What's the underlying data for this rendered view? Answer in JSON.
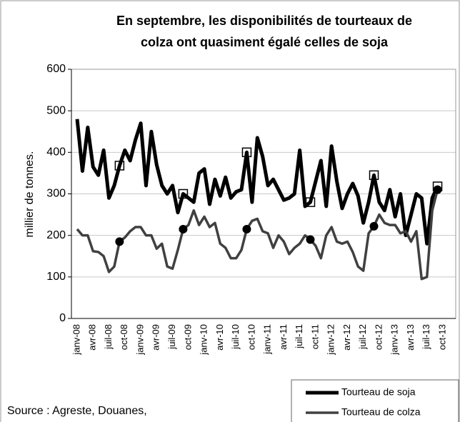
{
  "chart_data": {
    "type": "line",
    "title": "En septembre, les disponibilités de tourteaux de",
    "title_line2": "colza ont quasiment égalé celles de soja",
    "y_label": "millier de tonnes.",
    "source": "Source : Agreste, Douanes,",
    "categories": [
      "janv-08",
      null,
      null,
      "avr-08",
      null,
      null,
      "juil-08",
      null,
      null,
      "oct-08",
      null,
      null,
      "janv-09",
      null,
      null,
      "avr-09",
      null,
      null,
      "juil-09",
      null,
      null,
      "oct-09",
      null,
      null,
      "janv-10",
      null,
      null,
      "avr-10",
      null,
      null,
      "juil-10",
      null,
      null,
      "oct-10",
      null,
      null,
      "janv-11",
      null,
      null,
      "avr-11",
      null,
      null,
      "juil-11",
      null,
      null,
      "oct-11",
      null,
      null,
      "janv-12",
      null,
      null,
      "avr-12",
      null,
      null,
      "juil-12",
      null,
      null,
      "oct-12",
      null,
      null,
      "janv-13",
      null,
      null,
      "avr-13",
      null,
      null,
      "juil-13",
      null,
      null,
      "oct-13"
    ],
    "series": [
      {
        "name": "Tourteau de soja",
        "color": "#000000",
        "values": [
          480,
          355,
          460,
          365,
          345,
          405,
          290,
          320,
          368,
          405,
          380,
          430,
          470,
          320,
          450,
          370,
          320,
          300,
          320,
          255,
          300,
          290,
          280,
          350,
          360,
          275,
          335,
          295,
          340,
          290,
          305,
          310,
          400,
          280,
          435,
          390,
          320,
          335,
          310,
          285,
          290,
          300,
          405,
          270,
          280,
          330,
          380,
          270,
          415,
          330,
          265,
          300,
          325,
          295,
          230,
          280,
          345,
          280,
          260,
          310,
          245,
          300,
          200,
          250,
          300,
          290,
          180,
          290,
          318,
          null
        ]
      },
      {
        "name": "Tourteau de colza",
        "color": "#404040",
        "values": [
          215,
          200,
          200,
          162,
          160,
          150,
          112,
          125,
          185,
          195,
          210,
          220,
          220,
          200,
          200,
          168,
          180,
          125,
          120,
          165,
          215,
          225,
          260,
          225,
          245,
          220,
          230,
          180,
          170,
          145,
          145,
          165,
          215,
          235,
          240,
          210,
          205,
          170,
          200,
          185,
          155,
          170,
          180,
          200,
          190,
          175,
          145,
          200,
          220,
          185,
          180,
          185,
          160,
          125,
          115,
          205,
          222,
          250,
          230,
          225,
          225,
          205,
          210,
          185,
          210,
          95,
          100,
          260,
          310,
          null
        ]
      }
    ],
    "ylim": [
      0,
      600
    ],
    "yticks": [
      0,
      100,
      200,
      300,
      400,
      500,
      600
    ],
    "grid": true
  }
}
